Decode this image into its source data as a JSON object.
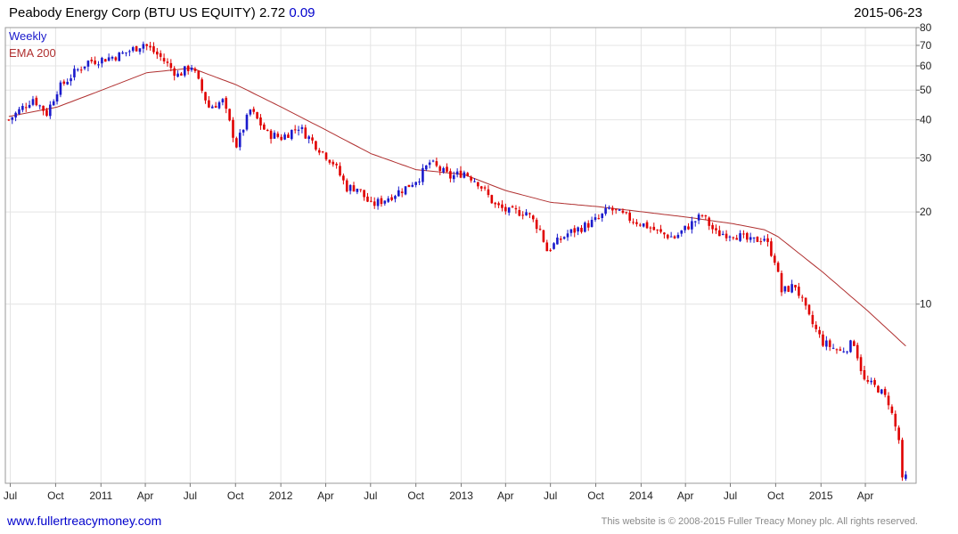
{
  "header": {
    "title": "Peabody Energy Corp (BTU US EQUITY)",
    "last_price": "2.72",
    "change": "0.09",
    "date": "2015-06-23"
  },
  "footer": {
    "website": "www.fullertreacymoney.com",
    "copyright": "This website is © 2008-2015 Fuller Treacy Money plc. All rights reserved."
  },
  "colors": {
    "up_candle": "#1a1acc",
    "down_candle": "#e00000",
    "ema_line": "#b03030",
    "grid": "#e4e4e4",
    "legend_weekly": "#1a1acc",
    "legend_ema": "#b03030"
  },
  "chart_data": {
    "type": "candlestick",
    "title": "Peabody Energy Corp (BTU US EQUITY)",
    "frequency": "Weekly",
    "legend": [
      "Weekly",
      "EMA 200"
    ],
    "legend_position": "top-left",
    "y_scale": "log",
    "y_axis_side": "right",
    "ylim": [
      2.6,
      80
    ],
    "y_ticks": [
      10,
      20,
      30,
      40,
      50,
      60,
      70,
      80
    ],
    "y_tick_labels": [
      "10",
      "20",
      "30",
      "40",
      "50",
      "60",
      "70",
      "80"
    ],
    "x_ticks": [
      {
        "label": "Jul",
        "date": "2010-07-01"
      },
      {
        "label": "Oct",
        "date": "2010-10-01"
      },
      {
        "label": "2011",
        "date": "2011-01-01"
      },
      {
        "label": "Apr",
        "date": "2011-04-01"
      },
      {
        "label": "Jul",
        "date": "2011-07-01"
      },
      {
        "label": "Oct",
        "date": "2011-10-01"
      },
      {
        "label": "2012",
        "date": "2012-01-01"
      },
      {
        "label": "Apr",
        "date": "2012-04-01"
      },
      {
        "label": "Jul",
        "date": "2012-07-01"
      },
      {
        "label": "Oct",
        "date": "2012-10-01"
      },
      {
        "label": "2013",
        "date": "2013-01-01"
      },
      {
        "label": "Apr",
        "date": "2013-04-01"
      },
      {
        "label": "Jul",
        "date": "2013-07-01"
      },
      {
        "label": "Oct",
        "date": "2013-10-01"
      },
      {
        "label": "2014",
        "date": "2014-01-01"
      },
      {
        "label": "Apr",
        "date": "2014-04-01"
      },
      {
        "label": "Jul",
        "date": "2014-07-01"
      },
      {
        "label": "Oct",
        "date": "2014-10-01"
      },
      {
        "label": "2015",
        "date": "2015-01-01"
      },
      {
        "label": "Apr",
        "date": "2015-04-01"
      }
    ],
    "x_range": [
      "2010-06-21",
      "2015-07-13"
    ],
    "grid": true,
    "price_anchors": [
      [
        "2010-06-28",
        40
      ],
      [
        "2010-08-16",
        47
      ],
      [
        "2010-09-13",
        42
      ],
      [
        "2010-10-04",
        50
      ],
      [
        "2010-11-08",
        57
      ],
      [
        "2010-12-06",
        62
      ],
      [
        "2011-01-03",
        63
      ],
      [
        "2011-02-07",
        65
      ],
      [
        "2011-03-07",
        68
      ],
      [
        "2011-03-28",
        71
      ],
      [
        "2011-05-02",
        64
      ],
      [
        "2011-06-06",
        56
      ],
      [
        "2011-07-04",
        60
      ],
      [
        "2011-08-08",
        44
      ],
      [
        "2011-09-05",
        46
      ],
      [
        "2011-10-03",
        33
      ],
      [
        "2011-10-31",
        43
      ],
      [
        "2011-12-05",
        36
      ],
      [
        "2012-01-02",
        35
      ],
      [
        "2012-02-06",
        38
      ],
      [
        "2012-03-05",
        34
      ],
      [
        "2012-04-16",
        29
      ],
      [
        "2012-05-14",
        24
      ],
      [
        "2012-06-04",
        24
      ],
      [
        "2012-07-02",
        21
      ],
      [
        "2012-07-30",
        22
      ],
      [
        "2012-09-10",
        24
      ],
      [
        "2012-10-08",
        26
      ],
      [
        "2012-10-29",
        29
      ],
      [
        "2012-12-10",
        26
      ],
      [
        "2013-01-07",
        27
      ],
      [
        "2013-02-04",
        25
      ],
      [
        "2013-03-11",
        21
      ],
      [
        "2013-04-08",
        20
      ],
      [
        "2013-05-13",
        20
      ],
      [
        "2013-06-10",
        17.5
      ],
      [
        "2013-06-24",
        15
      ],
      [
        "2013-08-05",
        17
      ],
      [
        "2013-09-09",
        18
      ],
      [
        "2013-10-07",
        19
      ],
      [
        "2013-10-28",
        20.5
      ],
      [
        "2013-12-09",
        19
      ],
      [
        "2014-01-13",
        18
      ],
      [
        "2014-02-10",
        17
      ],
      [
        "2014-03-10",
        16.5
      ],
      [
        "2014-04-07",
        18
      ],
      [
        "2014-05-05",
        19.5
      ],
      [
        "2014-06-02",
        17
      ],
      [
        "2014-07-07",
        17
      ],
      [
        "2014-08-11",
        16
      ],
      [
        "2014-09-08",
        16.5
      ],
      [
        "2014-09-29",
        14
      ],
      [
        "2014-10-13",
        11
      ],
      [
        "2014-11-10",
        11.5
      ],
      [
        "2014-12-08",
        9
      ],
      [
        "2015-01-05",
        7.5
      ],
      [
        "2015-02-09",
        7
      ],
      [
        "2015-03-09",
        7.5
      ],
      [
        "2015-03-30",
        5.6
      ],
      [
        "2015-04-27",
        5.3
      ],
      [
        "2015-05-18",
        4.8
      ],
      [
        "2015-06-08",
        3.6
      ],
      [
        "2015-06-15",
        2.63
      ],
      [
        "2015-06-22",
        2.72
      ]
    ],
    "ema_200_anchors": [
      [
        "2010-06-28",
        41
      ],
      [
        "2010-10-04",
        44
      ],
      [
        "2011-01-03",
        50
      ],
      [
        "2011-04-04",
        57
      ],
      [
        "2011-07-04",
        59
      ],
      [
        "2011-10-03",
        52
      ],
      [
        "2012-01-02",
        44
      ],
      [
        "2012-04-02",
        37
      ],
      [
        "2012-07-02",
        31
      ],
      [
        "2012-10-01",
        27.5
      ],
      [
        "2013-01-07",
        26.5
      ],
      [
        "2013-04-01",
        23.5
      ],
      [
        "2013-07-01",
        21.5
      ],
      [
        "2013-10-07",
        20.8
      ],
      [
        "2014-01-06",
        20
      ],
      [
        "2014-04-07",
        19.2
      ],
      [
        "2014-07-07",
        18.3
      ],
      [
        "2014-09-08",
        17.5
      ],
      [
        "2014-10-06",
        16.6
      ],
      [
        "2015-01-05",
        12.7
      ],
      [
        "2015-04-06",
        9.5
      ],
      [
        "2015-06-22",
        7.3
      ]
    ]
  }
}
